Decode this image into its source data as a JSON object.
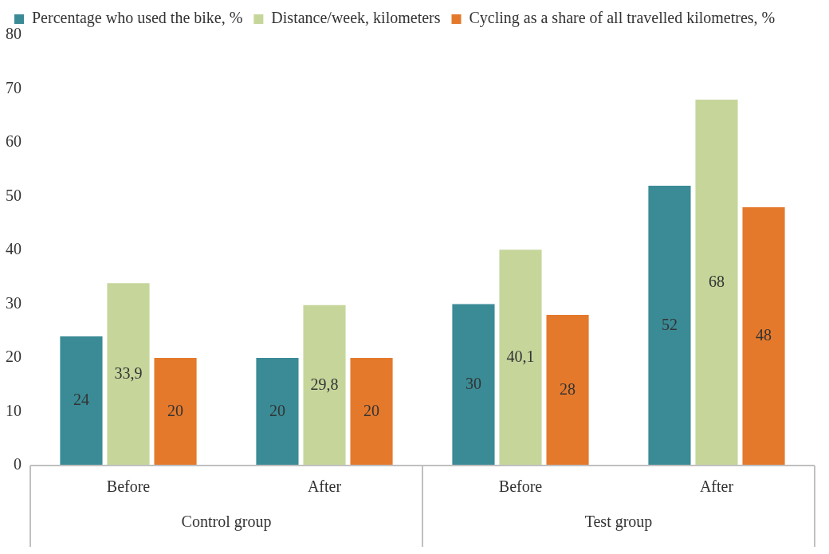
{
  "chart_data": {
    "type": "bar",
    "categories": [
      "Before",
      "After",
      "Before",
      "After"
    ],
    "annotations": [
      "Control group",
      "Test group"
    ],
    "series": [
      {
        "name": "Percentage who used the bike, %",
        "color": "#3a8b96",
        "values": [
          24,
          20,
          30,
          52
        ],
        "value_labels": [
          "24",
          "20",
          "30",
          "52"
        ]
      },
      {
        "name": "Distance/week, kilometers",
        "color": "#c6d69b",
        "values": [
          33.9,
          29.8,
          40.1,
          68
        ],
        "value_labels": [
          "33,9",
          "29,8",
          "40,1",
          "68"
        ]
      },
      {
        "name": "Cycling as a share of all travelled kilometres, %",
        "color": "#e4792c",
        "values": [
          20,
          20,
          28,
          48
        ],
        "value_labels": [
          "20",
          "20",
          "28",
          "48"
        ]
      }
    ],
    "ylim": [
      0,
      80
    ],
    "yticks": [
      0,
      10,
      20,
      30,
      40,
      50,
      60,
      70,
      80
    ],
    "grid": false,
    "legend": "top"
  }
}
